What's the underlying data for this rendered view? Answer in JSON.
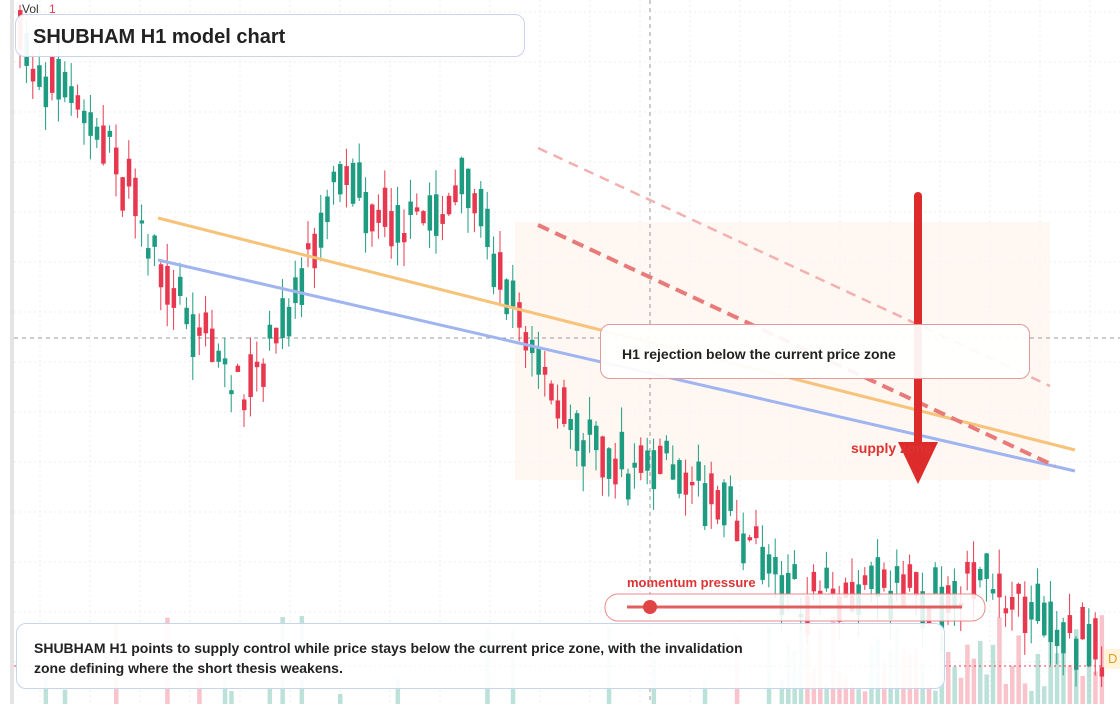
{
  "header": {
    "vol_label": "Vol",
    "vol_value": "1",
    "title": "SHUBHAM H1 model chart"
  },
  "annotations": {
    "rejection": "H1 rejection below the current price zone",
    "supply": "supply zone",
    "momentum": "momentum pressure"
  },
  "caption": "SHUBHAM H1 points to supply control while price stays below the current price zone, with the invalidation zone defining where the short thesis weakens.",
  "badge": "D"
}
